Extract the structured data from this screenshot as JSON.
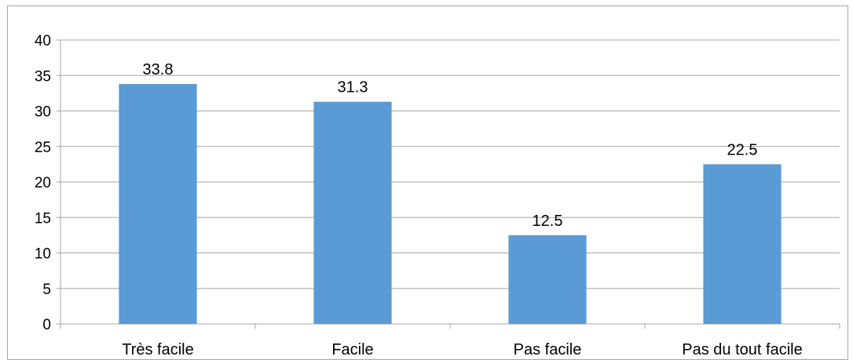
{
  "chart_data": {
    "type": "bar",
    "categories": [
      "Très facile",
      "Facile",
      "Pas facile",
      "Pas du tout facile"
    ],
    "values": [
      33.8,
      31.3,
      12.5,
      22.5
    ],
    "data_labels": [
      "33.8",
      "31.3",
      "12.5",
      "22.5"
    ],
    "title": "",
    "xlabel": "",
    "ylabel": "",
    "ylim": [
      0,
      40
    ],
    "yticks": [
      0,
      5,
      10,
      15,
      20,
      25,
      30,
      35,
      40
    ],
    "grid": true,
    "legend": "none",
    "bar_color": "#5b9bd5",
    "grid_color": "#a6a6a6",
    "axis_color": "#a6a6a6"
  }
}
